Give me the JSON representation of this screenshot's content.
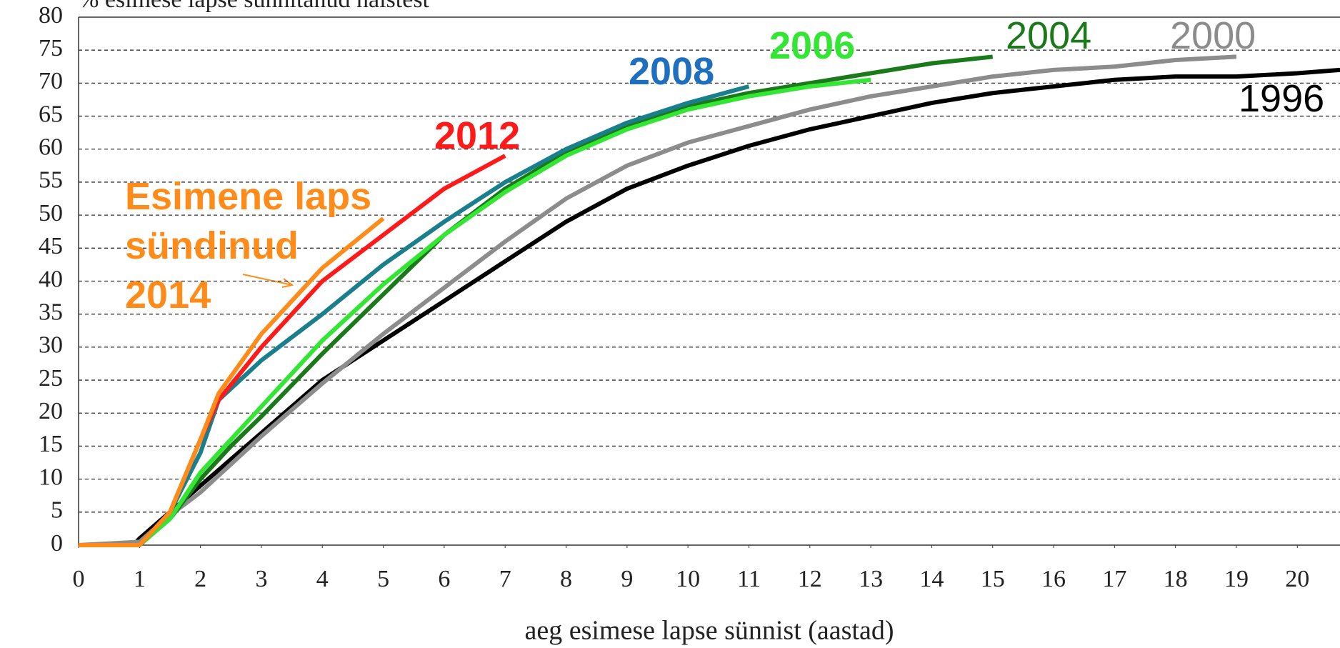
{
  "chart_data": {
    "type": "line",
    "title": "% esimese lapse sünnitanud naistest",
    "x_label": "aeg esimese lapse sünnist (aastad)",
    "xlim": [
      0,
      20.7
    ],
    "xticks": [
      0,
      1,
      2,
      3,
      4,
      5,
      6,
      7,
      8,
      9,
      10,
      11,
      12,
      13,
      14,
      15,
      16,
      17,
      18,
      19,
      20
    ],
    "ylim": [
      0,
      80
    ],
    "yticks": [
      0,
      5,
      10,
      15,
      20,
      25,
      30,
      35,
      40,
      45,
      50,
      55,
      60,
      65,
      70,
      75,
      80
    ],
    "grid": true,
    "series": [
      {
        "name": "1996",
        "color": "#000000",
        "label_color": "#000000",
        "x": [
          0,
          0.9,
          1,
          1.5,
          2,
          2.5,
          3,
          4,
          5,
          6,
          7,
          8,
          9,
          10,
          11,
          12,
          13,
          14,
          15,
          16,
          17,
          18,
          19,
          20,
          20.7
        ],
        "values": [
          0,
          0,
          1,
          5,
          9,
          13,
          17,
          25,
          31,
          37,
          43,
          49,
          54,
          57.5,
          60.5,
          63,
          65,
          67,
          68.5,
          69.5,
          70.5,
          71,
          71,
          71.5,
          72
        ]
      },
      {
        "name": "2000",
        "color": "#8c8c8c",
        "label_color": "#8c8c8c",
        "x": [
          0,
          1,
          1.5,
          2,
          3,
          4,
          5,
          6,
          7,
          8,
          9,
          10,
          11,
          12,
          13,
          14,
          15,
          16,
          17,
          18,
          19
        ],
        "values": [
          0,
          0.5,
          4.5,
          8,
          16.5,
          24.5,
          32,
          39,
          46,
          52.5,
          57.5,
          61,
          63.5,
          66,
          68,
          69.5,
          71,
          72,
          72.5,
          73.5,
          74
        ]
      },
      {
        "name": "2004",
        "color": "#1a7a1a",
        "label_color": "#1a7a1a",
        "x": [
          0,
          1,
          1.5,
          2,
          2.5,
          3,
          4,
          5,
          6,
          7,
          8,
          9,
          10,
          11,
          12,
          13,
          14,
          15
        ],
        "values": [
          0,
          0,
          4,
          10,
          15,
          19.5,
          29,
          38,
          47,
          54,
          59.5,
          63.5,
          66.5,
          68.5,
          70,
          71.5,
          73,
          74
        ]
      },
      {
        "name": "2006",
        "color": "#33e633",
        "label_color": "#33e633",
        "x": [
          0,
          1,
          1.5,
          2,
          2.5,
          3,
          4,
          5,
          6,
          7,
          8,
          9,
          10,
          11,
          12,
          13
        ],
        "values": [
          0,
          0,
          4,
          11,
          16,
          21,
          31,
          39.5,
          47,
          53.5,
          59,
          63,
          66,
          68,
          69.5,
          70.5
        ]
      },
      {
        "name": "2008",
        "color": "#1a7f8c",
        "label_color": "#1f6fbf",
        "x": [
          0,
          1,
          1.5,
          2,
          2.3,
          3,
          4,
          5,
          6,
          7,
          8,
          9,
          10,
          11
        ],
        "values": [
          0,
          0,
          5,
          14,
          22,
          28,
          35,
          42.5,
          49,
          55,
          60,
          64,
          67,
          69.5
        ]
      },
      {
        "name": "2012",
        "color": "#ff1a1a",
        "label_color": "#ff1a1a",
        "x": [
          0,
          1,
          1.5,
          2,
          2.3,
          3,
          4,
          5,
          6,
          7
        ],
        "values": [
          0,
          0,
          5,
          16,
          22,
          30,
          40,
          47,
          54,
          59
        ]
      },
      {
        "name": "Esimene laps\nsündinud\n2014",
        "color": "#ff8c1a",
        "label_color": "#ff8c1a",
        "x": [
          0,
          1,
          1.5,
          2,
          2.3,
          3,
          4,
          5
        ],
        "values": [
          0,
          0,
          5,
          16,
          23,
          32,
          42,
          49.5
        ]
      }
    ]
  }
}
